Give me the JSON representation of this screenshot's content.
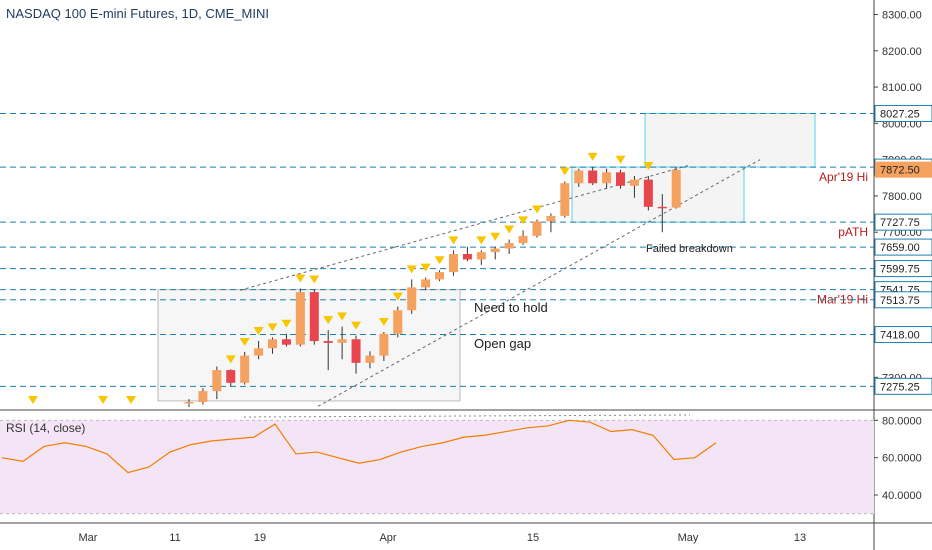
{
  "header": {
    "title": "NASDAQ 100 E-mini Futures, 1D, CME_MINI"
  },
  "rsi_panel": {
    "title": "RSI (14, close)"
  },
  "colors": {
    "up": "#f5a15f",
    "down": "#e8454c",
    "wick": "#333333",
    "level_line": "#1f7fae",
    "box_stroke": "#53d6e8",
    "red_text": "#b71c1c",
    "rsi_line": "#f57c00",
    "rsi_band": "#f3e5f5",
    "marker": "#f7c600",
    "price_tag": "#f5a15f"
  },
  "chart_data": [
    {
      "type": "candlestick",
      "title": "NASDAQ 100 E-mini Futures, 1D, CME_MINI",
      "ylim": [
        7210,
        8340
      ],
      "x_ticks": [
        "Mar",
        "11",
        "19",
        "Apr",
        "15",
        "May",
        "13"
      ],
      "y_ticks": [
        "8300.00",
        "8200.00",
        "8100.00",
        "8000.00",
        "7900.00",
        "7800.00",
        "7700.00",
        "7300.00"
      ],
      "price_levels": [
        {
          "value": 8027.25,
          "label": "8027.25",
          "note": ""
        },
        {
          "value": 7879.5,
          "label": "7879.50",
          "note": "Apr'19 Hi"
        },
        {
          "value": 7727.75,
          "label": "7727.75",
          "note": "pATH"
        },
        {
          "value": 7659.0,
          "label": "7659.00",
          "note": ""
        },
        {
          "value": 7599.75,
          "label": "7599.75",
          "note": ""
        },
        {
          "value": 7541.75,
          "label": "7541.75",
          "note": "Mar'19 Hi"
        },
        {
          "value": 7513.75,
          "label": "7513.75",
          "note": ""
        },
        {
          "value": 7418.0,
          "label": "7418.00",
          "note": ""
        },
        {
          "value": 7275.25,
          "label": "7275.25",
          "note": ""
        }
      ],
      "last_price": {
        "value": 7872.5,
        "label": "7872.50"
      },
      "annotations": [
        "Failed breakdown",
        "Need to hold",
        "Open gap"
      ],
      "candles": [
        {
          "o": 7228,
          "h": 7240,
          "l": 7218,
          "c": 7232
        },
        {
          "o": 7232,
          "h": 7270,
          "l": 7225,
          "c": 7262
        },
        {
          "o": 7262,
          "h": 7330,
          "l": 7240,
          "c": 7320
        },
        {
          "o": 7320,
          "h": 7322,
          "l": 7275,
          "c": 7285
        },
        {
          "o": 7285,
          "h": 7370,
          "l": 7280,
          "c": 7360
        },
        {
          "o": 7360,
          "h": 7400,
          "l": 7350,
          "c": 7380
        },
        {
          "o": 7380,
          "h": 7410,
          "l": 7365,
          "c": 7405
        },
        {
          "o": 7405,
          "h": 7420,
          "l": 7385,
          "c": 7390
        },
        {
          "o": 7390,
          "h": 7545,
          "l": 7385,
          "c": 7535
        },
        {
          "o": 7535,
          "h": 7542,
          "l": 7390,
          "c": 7400
        },
        {
          "o": 7400,
          "h": 7430,
          "l": 7320,
          "c": 7395
        },
        {
          "o": 7395,
          "h": 7440,
          "l": 7350,
          "c": 7405
        },
        {
          "o": 7405,
          "h": 7415,
          "l": 7310,
          "c": 7340
        },
        {
          "o": 7340,
          "h": 7372,
          "l": 7325,
          "c": 7360
        },
        {
          "o": 7360,
          "h": 7425,
          "l": 7345,
          "c": 7420
        },
        {
          "o": 7420,
          "h": 7495,
          "l": 7410,
          "c": 7485
        },
        {
          "o": 7485,
          "h": 7570,
          "l": 7475,
          "c": 7548
        },
        {
          "o": 7548,
          "h": 7575,
          "l": 7540,
          "c": 7570
        },
        {
          "o": 7570,
          "h": 7595,
          "l": 7565,
          "c": 7590
        },
        {
          "o": 7590,
          "h": 7650,
          "l": 7580,
          "c": 7640
        },
        {
          "o": 7640,
          "h": 7660,
          "l": 7620,
          "c": 7625
        },
        {
          "o": 7625,
          "h": 7650,
          "l": 7610,
          "c": 7645
        },
        {
          "o": 7645,
          "h": 7660,
          "l": 7625,
          "c": 7655
        },
        {
          "o": 7655,
          "h": 7680,
          "l": 7640,
          "c": 7670
        },
        {
          "o": 7670,
          "h": 7705,
          "l": 7665,
          "c": 7690
        },
        {
          "o": 7690,
          "h": 7735,
          "l": 7685,
          "c": 7730
        },
        {
          "o": 7730,
          "h": 7752,
          "l": 7700,
          "c": 7745
        },
        {
          "o": 7745,
          "h": 7840,
          "l": 7740,
          "c": 7835
        },
        {
          "o": 7835,
          "h": 7875,
          "l": 7825,
          "c": 7870
        },
        {
          "o": 7870,
          "h": 7880,
          "l": 7830,
          "c": 7835
        },
        {
          "o": 7835,
          "h": 7875,
          "l": 7820,
          "c": 7865
        },
        {
          "o": 7865,
          "h": 7872,
          "l": 7820,
          "c": 7828
        },
        {
          "o": 7828,
          "h": 7855,
          "l": 7795,
          "c": 7845
        },
        {
          "o": 7845,
          "h": 7855,
          "l": 7760,
          "c": 7770
        },
        {
          "o": 7770,
          "h": 7805,
          "l": 7700,
          "c": 7768
        },
        {
          "o": 7768,
          "h": 7880,
          "l": 7765,
          "c": 7872
        }
      ]
    },
    {
      "type": "line",
      "title": "RSI (14, close)",
      "ylim": [
        25,
        85
      ],
      "y_ticks": [
        "80.0000",
        "60.0000",
        "40.0000"
      ],
      "values": [
        60,
        58,
        66,
        68,
        66,
        62,
        52,
        55,
        63,
        67,
        69,
        70,
        71,
        78,
        62,
        63,
        60,
        57,
        59,
        63,
        66,
        68,
        71,
        72,
        74,
        76,
        77,
        80,
        79,
        74,
        75,
        72,
        59,
        60,
        68
      ]
    }
  ]
}
